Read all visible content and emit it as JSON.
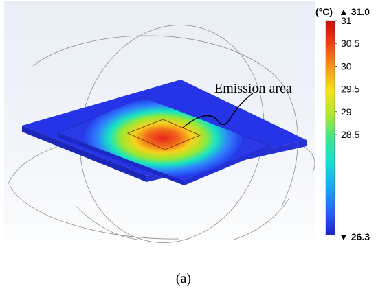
{
  "annotation": {
    "label": "Emission area"
  },
  "colorbar": {
    "unit": "(°C)",
    "max_label": "▲ 31.0",
    "min_label": "▼ 26.3",
    "min": 26.3,
    "max": 31.0,
    "ticks": [
      "31",
      "30.5",
      "30",
      "29.5",
      "29",
      "28.5"
    ],
    "tick_values": [
      31,
      30.5,
      30,
      29.5,
      29,
      28.5
    ]
  },
  "caption": {
    "label": "(a)"
  },
  "colors": {
    "plate": "#2434e6",
    "plate_side": "#1c28c0",
    "hot": "#e8231a",
    "warm": "#f7d21a",
    "mid": "#18e6c0",
    "cool": "#2f66ff"
  }
}
